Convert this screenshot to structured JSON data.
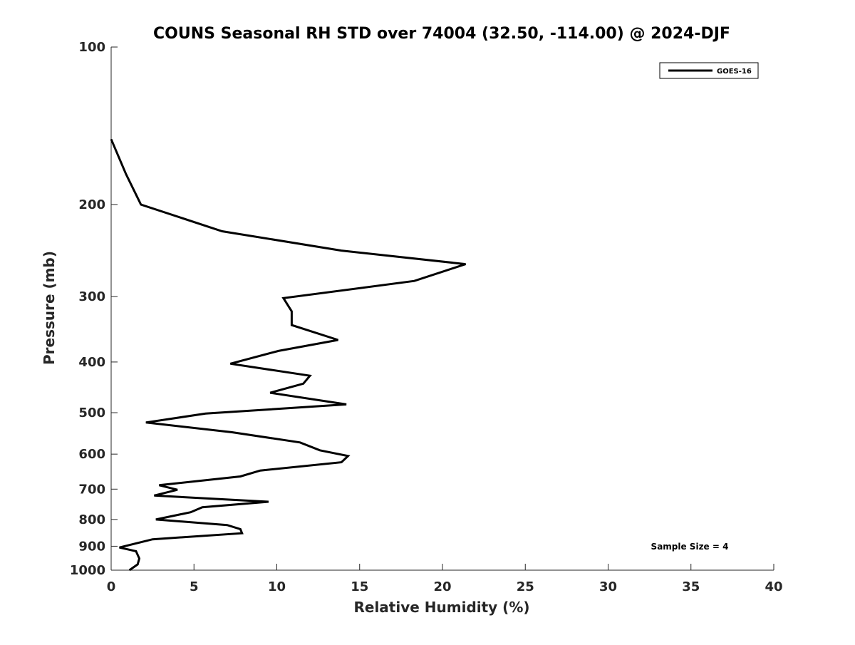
{
  "chart_data": {
    "type": "line",
    "title": "COUNS Seasonal RH STD over 74004 (32.50, -114.00) @ 2024-DJF",
    "xlabel": "Relative Humidity (%)",
    "ylabel": "Pressure (mb)",
    "xlim": [
      0,
      40
    ],
    "ylim": [
      1000,
      100
    ],
    "y_scale": "log",
    "y_reversed": true,
    "grid": false,
    "x_ticks": [
      0,
      5,
      10,
      15,
      20,
      25,
      30,
      35,
      40
    ],
    "y_ticks": [
      100,
      200,
      300,
      400,
      500,
      600,
      700,
      800,
      900,
      1000
    ],
    "legend": {
      "placement": "top-right",
      "entries": [
        "GOES-16"
      ]
    },
    "annotation": "Sample Size = 4",
    "series": [
      {
        "name": "GOES-16",
        "color": "#000000",
        "points": [
          [
            0.0,
            150
          ],
          [
            0.9,
            175
          ],
          [
            1.8,
            200
          ],
          [
            6.7,
            225
          ],
          [
            13.9,
            245
          ],
          [
            21.4,
            260
          ],
          [
            18.3,
            280
          ],
          [
            10.4,
            302
          ],
          [
            10.9,
            320
          ],
          [
            10.9,
            340
          ],
          [
            13.7,
            363
          ],
          [
            10.1,
            381
          ],
          [
            7.2,
            403
          ],
          [
            12.0,
            425
          ],
          [
            11.6,
            440
          ],
          [
            9.6,
            458
          ],
          [
            14.2,
            482
          ],
          [
            5.7,
            502
          ],
          [
            2.1,
            522
          ],
          [
            7.3,
            545
          ],
          [
            11.4,
            570
          ],
          [
            12.6,
            590
          ],
          [
            14.3,
            605
          ],
          [
            13.9,
            622
          ],
          [
            9.0,
            645
          ],
          [
            7.8,
            662
          ],
          [
            2.9,
            688
          ],
          [
            4.0,
            702
          ],
          [
            2.6,
            720
          ],
          [
            9.5,
            740
          ],
          [
            5.5,
            758
          ],
          [
            4.8,
            775
          ],
          [
            2.7,
            800
          ],
          [
            7.0,
            820
          ],
          [
            7.8,
            835
          ],
          [
            7.9,
            850
          ],
          [
            2.5,
            873
          ],
          [
            0.5,
            905
          ],
          [
            1.5,
            920
          ],
          [
            1.7,
            950
          ],
          [
            1.6,
            975
          ],
          [
            1.1,
            1000
          ]
        ]
      }
    ]
  }
}
